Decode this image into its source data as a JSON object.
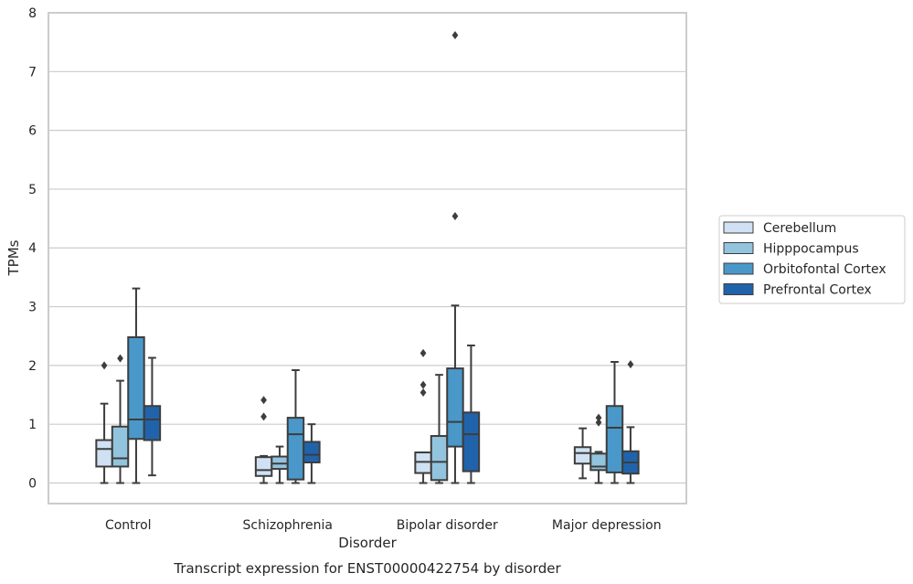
{
  "chart_data": {
    "type": "boxplot",
    "xlabel": "Disorder",
    "ylabel": "TPMs",
    "caption": "Transcript expression for ENST00000422754 by disorder",
    "ylim": [
      -0.35,
      8.0
    ],
    "yticks": [
      0,
      1,
      2,
      3,
      4,
      5,
      6,
      7,
      8
    ],
    "grid": "horizontal",
    "legend_position": "right",
    "categories": [
      "Control",
      "Schizophrenia",
      "Bipolar disorder",
      "Major depression"
    ],
    "series": [
      {
        "name": "Cerebellum",
        "color": "#cfe1f2",
        "boxes": [
          {
            "whisker_low": 0.0,
            "q1": 0.28,
            "median": 0.58,
            "q3": 0.73,
            "whisker_high": 1.35,
            "outliers": [
              2.0
            ]
          },
          {
            "whisker_low": 0.0,
            "q1": 0.12,
            "median": 0.22,
            "q3": 0.44,
            "whisker_high": 0.46,
            "outliers": [
              1.13,
              1.41
            ]
          },
          {
            "whisker_low": 0.0,
            "q1": 0.17,
            "median": 0.36,
            "q3": 0.52,
            "whisker_high": 0.52,
            "outliers": [
              1.54,
              1.67,
              2.21
            ]
          },
          {
            "whisker_low": 0.08,
            "q1": 0.33,
            "median": 0.51,
            "q3": 0.61,
            "whisker_high": 0.93,
            "outliers": []
          }
        ]
      },
      {
        "name": "Hipppocampus",
        "color": "#93c4de",
        "boxes": [
          {
            "whisker_low": 0.0,
            "q1": 0.28,
            "median": 0.42,
            "q3": 0.96,
            "whisker_high": 1.74,
            "outliers": [
              2.12
            ]
          },
          {
            "whisker_low": 0.0,
            "q1": 0.24,
            "median": 0.33,
            "q3": 0.45,
            "whisker_high": 0.62,
            "outliers": []
          },
          {
            "whisker_low": 0.0,
            "q1": 0.05,
            "median": 0.36,
            "q3": 0.8,
            "whisker_high": 1.84,
            "outliers": []
          },
          {
            "whisker_low": 0.0,
            "q1": 0.22,
            "median": 0.28,
            "q3": 0.5,
            "whisker_high": 0.53,
            "outliers": [
              1.03,
              1.11
            ]
          }
        ]
      },
      {
        "name": "Orbitofontal Cortex",
        "color": "#4a98c9",
        "boxes": [
          {
            "whisker_low": 0.0,
            "q1": 0.75,
            "median": 1.08,
            "q3": 2.48,
            "whisker_high": 3.31,
            "outliers": []
          },
          {
            "whisker_low": 0.0,
            "q1": 0.06,
            "median": 0.83,
            "q3": 1.11,
            "whisker_high": 1.92,
            "outliers": []
          },
          {
            "whisker_low": 0.0,
            "q1": 0.62,
            "median": 1.04,
            "q3": 1.95,
            "whisker_high": 3.02,
            "outliers": [
              4.54,
              7.62
            ]
          },
          {
            "whisker_low": 0.0,
            "q1": 0.18,
            "median": 0.94,
            "q3": 1.31,
            "whisker_high": 2.06,
            "outliers": []
          }
        ]
      },
      {
        "name": "Prefrontal Cortex",
        "color": "#2163aa",
        "boxes": [
          {
            "whisker_low": 0.13,
            "q1": 0.73,
            "median": 1.08,
            "q3": 1.31,
            "whisker_high": 2.13,
            "outliers": []
          },
          {
            "whisker_low": 0.0,
            "q1": 0.35,
            "median": 0.48,
            "q3": 0.7,
            "whisker_high": 1.0,
            "outliers": []
          },
          {
            "whisker_low": 0.0,
            "q1": 0.2,
            "median": 0.83,
            "q3": 1.2,
            "whisker_high": 2.34,
            "outliers": []
          },
          {
            "whisker_low": 0.0,
            "q1": 0.16,
            "median": 0.35,
            "q3": 0.54,
            "whisker_high": 0.95,
            "outliers": [
              2.02
            ]
          }
        ]
      }
    ]
  }
}
